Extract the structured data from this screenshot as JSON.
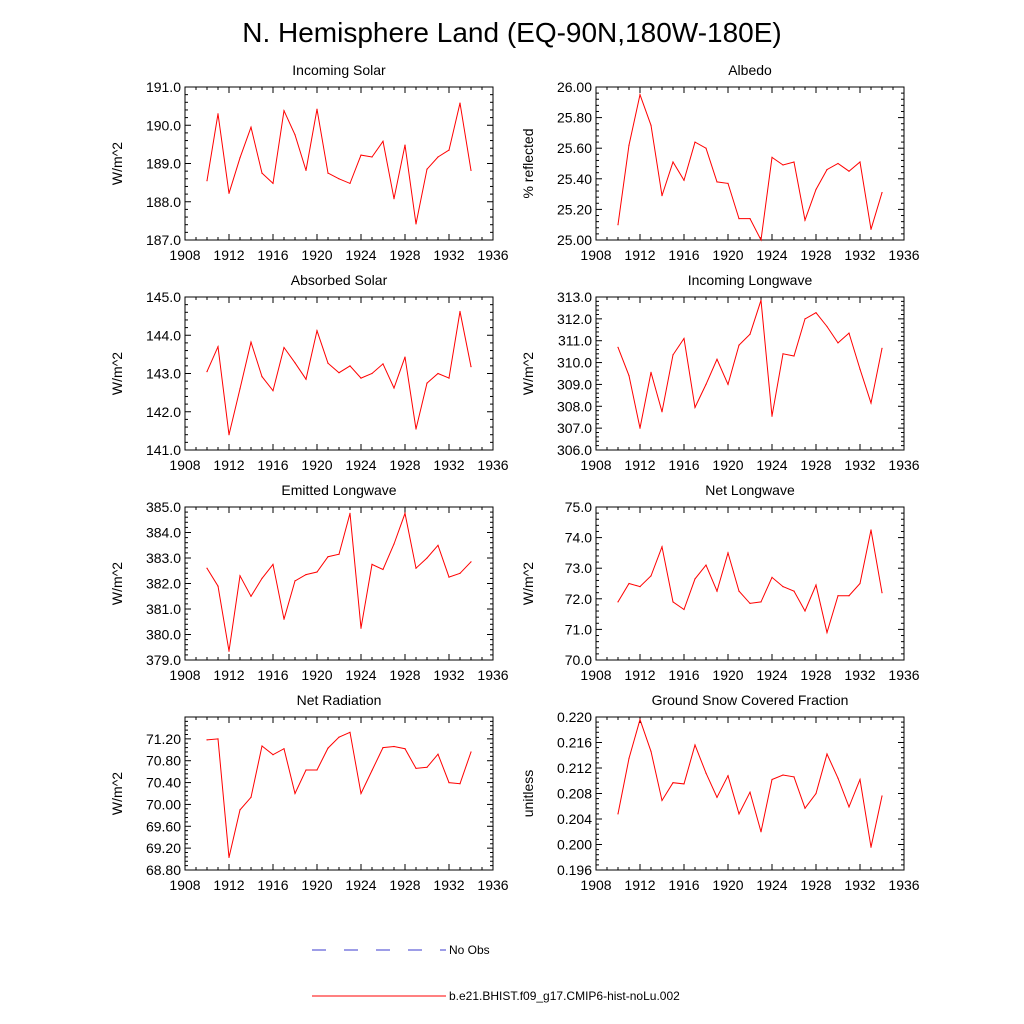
{
  "figure": {
    "title": "N. Hemisphere Land (EQ-90N,180W-180E)"
  },
  "legend": {
    "entries": [
      {
        "label": "No Obs",
        "color": "#3b3bcf",
        "style": "dashed"
      },
      {
        "label": "b.e21.BHIST.f09_g17.CMIP6-hist-noLu.002",
        "color": "#ff0000",
        "style": "solid"
      }
    ]
  },
  "chart_data": [
    {
      "type": "line",
      "title": "Incoming Solar",
      "ylabel": "W/m^2",
      "xlim": [
        1908,
        1936
      ],
      "xticks": [
        "1908",
        "1912",
        "1916",
        "1920",
        "1924",
        "1928",
        "1932",
        "1936"
      ],
      "ylim": [
        187.0,
        191.0
      ],
      "yticks": [
        "187.0",
        "188.0",
        "189.0",
        "190.0",
        "191.0"
      ],
      "grid": false,
      "color": "#ff0000",
      "x": [
        1910,
        1911,
        1912,
        1913,
        1914,
        1915,
        1916,
        1917,
        1918,
        1919,
        1920,
        1921,
        1922,
        1923,
        1924,
        1925,
        1926,
        1927,
        1928,
        1929,
        1930,
        1931,
        1932,
        1933,
        1934
      ],
      "values": [
        188.55,
        190.3,
        188.22,
        189.15,
        189.95,
        188.75,
        188.48,
        190.38,
        189.75,
        188.82,
        190.42,
        188.75,
        188.6,
        188.48,
        189.22,
        189.17,
        189.58,
        188.08,
        189.48,
        187.42,
        188.85,
        189.17,
        189.35,
        190.58,
        188.82
      ]
    },
    {
      "type": "line",
      "title": "Albedo",
      "ylabel": "% reflected",
      "xlim": [
        1908,
        1936
      ],
      "xticks": [
        "1908",
        "1912",
        "1916",
        "1920",
        "1924",
        "1928",
        "1932",
        "1936"
      ],
      "ylim": [
        25.0,
        26.0
      ],
      "yticks": [
        "25.00",
        "25.20",
        "25.40",
        "25.60",
        "25.80",
        "26.00"
      ],
      "grid": false,
      "color": "#ff0000",
      "x": [
        1910,
        1911,
        1912,
        1913,
        1914,
        1915,
        1916,
        1917,
        1918,
        1919,
        1920,
        1921,
        1922,
        1923,
        1924,
        1925,
        1926,
        1927,
        1928,
        1929,
        1930,
        1931,
        1932,
        1933,
        1934
      ],
      "values": [
        25.1,
        25.62,
        25.95,
        25.75,
        25.29,
        25.51,
        25.39,
        25.64,
        25.6,
        25.38,
        25.37,
        25.14,
        25.14,
        25.0,
        25.54,
        25.49,
        25.51,
        25.13,
        25.33,
        25.46,
        25.5,
        25.45,
        25.51,
        25.07,
        25.31
      ]
    },
    {
      "type": "line",
      "title": "Absorbed Solar",
      "ylabel": "W/m^2",
      "xlim": [
        1908,
        1936
      ],
      "xticks": [
        "1908",
        "1912",
        "1916",
        "1920",
        "1924",
        "1928",
        "1932",
        "1936"
      ],
      "ylim": [
        141.0,
        145.0
      ],
      "yticks": [
        "141.0",
        "142.0",
        "143.0",
        "144.0",
        "145.0"
      ],
      "grid": false,
      "color": "#ff0000",
      "x": [
        1910,
        1911,
        1912,
        1913,
        1914,
        1915,
        1916,
        1917,
        1918,
        1919,
        1920,
        1921,
        1922,
        1923,
        1924,
        1925,
        1926,
        1927,
        1928,
        1929,
        1930,
        1931,
        1932,
        1933,
        1934
      ],
      "values": [
        143.05,
        143.7,
        141.4,
        142.6,
        143.82,
        142.92,
        142.55,
        143.68,
        143.28,
        142.85,
        144.12,
        143.27,
        143.02,
        143.2,
        142.88,
        143.0,
        143.25,
        142.62,
        143.43,
        141.55,
        142.75,
        143.0,
        142.88,
        144.62,
        143.18
      ]
    },
    {
      "type": "line",
      "title": "Incoming Longwave",
      "ylabel": "W/m^2",
      "xlim": [
        1908,
        1936
      ],
      "xticks": [
        "1908",
        "1912",
        "1916",
        "1920",
        "1924",
        "1928",
        "1932",
        "1936"
      ],
      "ylim": [
        306.0,
        313.0
      ],
      "yticks": [
        "306.0",
        "307.0",
        "308.0",
        "309.0",
        "310.0",
        "311.0",
        "312.0",
        "313.0"
      ],
      "grid": false,
      "color": "#ff0000",
      "x": [
        1910,
        1911,
        1912,
        1913,
        1914,
        1915,
        1916,
        1917,
        1918,
        1919,
        1920,
        1921,
        1922,
        1923,
        1924,
        1925,
        1926,
        1927,
        1928,
        1929,
        1930,
        1931,
        1932,
        1933,
        1934
      ],
      "values": [
        310.7,
        309.4,
        307.0,
        309.55,
        307.75,
        310.35,
        311.1,
        307.95,
        309.0,
        310.15,
        309.0,
        310.8,
        311.3,
        312.85,
        307.55,
        310.4,
        310.3,
        312.0,
        312.28,
        311.65,
        310.9,
        311.35,
        309.7,
        308.15,
        310.65
      ]
    },
    {
      "type": "line",
      "title": "Emitted Longwave",
      "ylabel": "W/m^2",
      "xlim": [
        1908,
        1936
      ],
      "xticks": [
        "1908",
        "1912",
        "1916",
        "1920",
        "1924",
        "1928",
        "1932",
        "1936"
      ],
      "ylim": [
        379.0,
        385.0
      ],
      "yticks": [
        "379.0",
        "380.0",
        "381.0",
        "382.0",
        "383.0",
        "384.0",
        "385.0"
      ],
      "grid": false,
      "color": "#ff0000",
      "x": [
        1910,
        1911,
        1912,
        1913,
        1914,
        1915,
        1916,
        1917,
        1918,
        1919,
        1920,
        1921,
        1922,
        1923,
        1924,
        1925,
        1926,
        1927,
        1928,
        1929,
        1930,
        1931,
        1932,
        1933,
        1934
      ],
      "values": [
        382.6,
        381.9,
        379.35,
        382.3,
        381.5,
        382.2,
        382.75,
        380.6,
        382.1,
        382.35,
        382.45,
        383.05,
        383.15,
        384.75,
        380.25,
        382.75,
        382.55,
        383.55,
        384.75,
        382.6,
        383.0,
        383.5,
        382.25,
        382.4,
        382.85
      ]
    },
    {
      "type": "line",
      "title": "Net Longwave",
      "ylabel": "W/m^2",
      "xlim": [
        1908,
        1936
      ],
      "xticks": [
        "1908",
        "1912",
        "1916",
        "1920",
        "1924",
        "1928",
        "1932",
        "1936"
      ],
      "ylim": [
        70.0,
        75.0
      ],
      "yticks": [
        "70.0",
        "71.0",
        "72.0",
        "73.0",
        "74.0",
        "75.0"
      ],
      "grid": false,
      "color": "#ff0000",
      "x": [
        1910,
        1911,
        1912,
        1913,
        1914,
        1915,
        1916,
        1917,
        1918,
        1919,
        1920,
        1921,
        1922,
        1923,
        1924,
        1925,
        1926,
        1927,
        1928,
        1929,
        1930,
        1931,
        1932,
        1933,
        1934
      ],
      "values": [
        71.9,
        72.5,
        72.4,
        72.75,
        73.7,
        71.9,
        71.65,
        72.65,
        73.1,
        72.25,
        73.5,
        72.25,
        71.85,
        71.9,
        72.7,
        72.4,
        72.25,
        71.6,
        72.45,
        70.9,
        72.1,
        72.1,
        72.5,
        74.25,
        72.2
      ]
    },
    {
      "type": "line",
      "title": "Net Radiation",
      "ylabel": "W/m^2",
      "xlim": [
        1908,
        1936
      ],
      "xticks": [
        "1908",
        "1912",
        "1916",
        "1920",
        "1924",
        "1928",
        "1932",
        "1936"
      ],
      "ylim": [
        68.8,
        71.6
      ],
      "yticks": [
        "68.80",
        "69.20",
        "69.60",
        "70.00",
        "70.40",
        "70.80",
        "71.20"
      ],
      "grid": false,
      "color": "#ff0000",
      "x": [
        1910,
        1911,
        1912,
        1913,
        1914,
        1915,
        1916,
        1917,
        1918,
        1919,
        1920,
        1921,
        1922,
        1923,
        1924,
        1925,
        1926,
        1927,
        1928,
        1929,
        1930,
        1931,
        1932,
        1933,
        1934
      ],
      "values": [
        71.18,
        71.2,
        69.03,
        69.9,
        70.13,
        71.07,
        70.91,
        71.02,
        70.2,
        70.63,
        70.63,
        71.03,
        71.23,
        71.32,
        70.2,
        70.62,
        71.04,
        71.06,
        71.02,
        70.66,
        70.68,
        70.92,
        70.4,
        70.38,
        70.96
      ]
    },
    {
      "type": "line",
      "title": "Ground Snow Covered Fraction",
      "ylabel": "unitless",
      "xlim": [
        1908,
        1936
      ],
      "xticks": [
        "1908",
        "1912",
        "1916",
        "1920",
        "1924",
        "1928",
        "1932",
        "1936"
      ],
      "ylim": [
        0.196,
        0.22
      ],
      "yticks": [
        "0.196",
        "0.200",
        "0.204",
        "0.208",
        "0.212",
        "0.216",
        "0.220"
      ],
      "grid": false,
      "color": "#ff0000",
      "x": [
        1910,
        1911,
        1912,
        1913,
        1914,
        1915,
        1916,
        1917,
        1918,
        1919,
        1920,
        1921,
        1922,
        1923,
        1924,
        1925,
        1926,
        1927,
        1928,
        1929,
        1930,
        1931,
        1932,
        1933,
        1934
      ],
      "values": [
        0.2048,
        0.2135,
        0.2196,
        0.2146,
        0.2069,
        0.2097,
        0.2095,
        0.2156,
        0.2112,
        0.2074,
        0.2108,
        0.2048,
        0.2082,
        0.202,
        0.2102,
        0.2109,
        0.2106,
        0.2057,
        0.208,
        0.2142,
        0.2104,
        0.2059,
        0.2102,
        0.1996,
        0.2076
      ]
    }
  ]
}
